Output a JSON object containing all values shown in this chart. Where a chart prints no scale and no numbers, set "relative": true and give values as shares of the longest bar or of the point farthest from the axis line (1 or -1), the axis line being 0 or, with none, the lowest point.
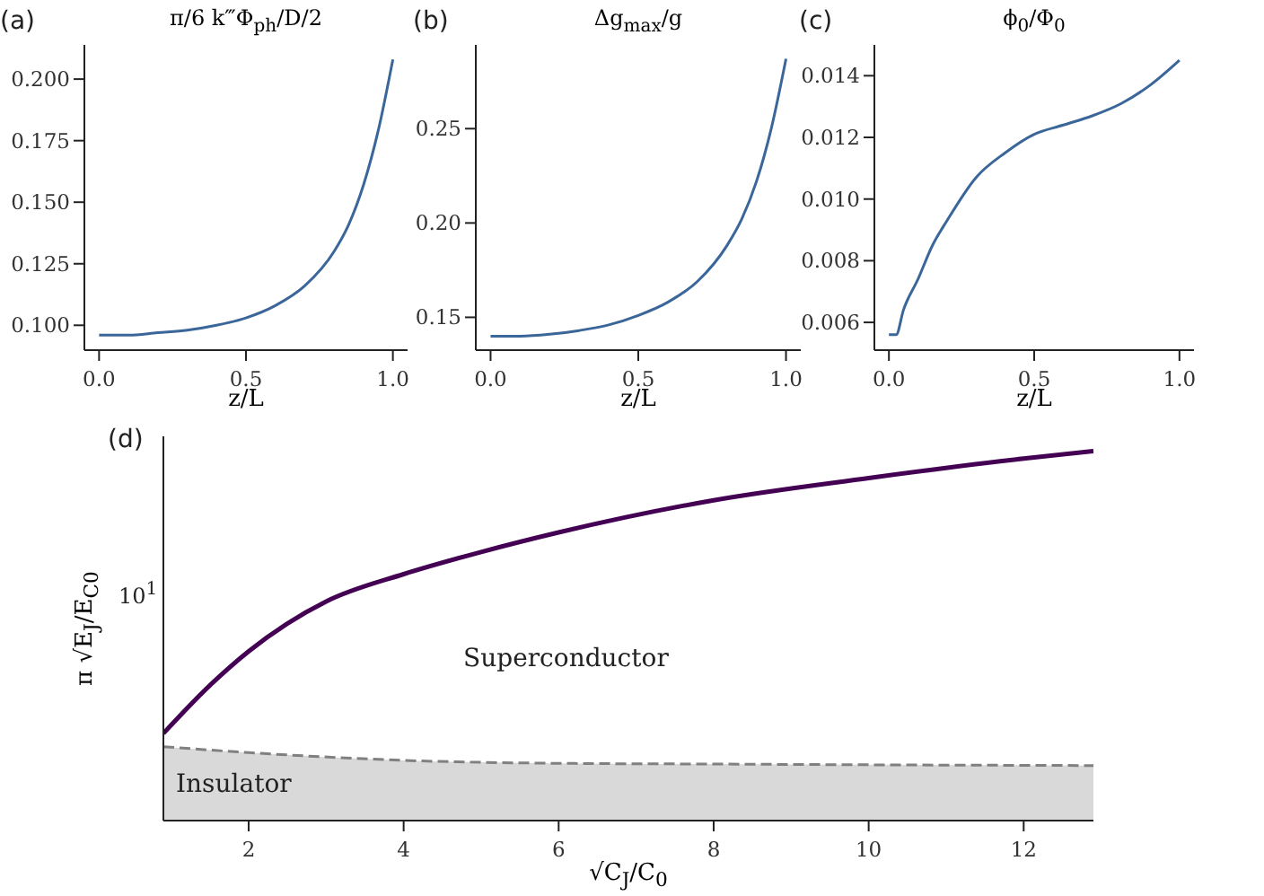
{
  "chart_data": [
    {
      "type": "line",
      "title": "π/6 k‴Φ$_{ph}$/D/2",
      "xlabel": "z/L",
      "annotations": [
        "(a)"
      ],
      "color": "#3a6699",
      "x": [
        0,
        0.1,
        0.2,
        0.3,
        0.4,
        0.5,
        0.6,
        0.7,
        0.8,
        0.85,
        0.9,
        0.95,
        1.0
      ],
      "values": [
        0.096,
        0.096,
        0.097,
        0.098,
        0.1,
        0.103,
        0.108,
        0.116,
        0.13,
        0.141,
        0.157,
        0.179,
        0.208
      ],
      "xlim": [
        -0.05,
        1.05
      ],
      "xticks": [
        {
          "value": 0,
          "label": "0.0"
        },
        {
          "value": 0.5,
          "label": "0.5"
        },
        {
          "value": 1,
          "label": "1.0"
        }
      ],
      "ylim": [
        0.0899,
        0.2139
      ],
      "yticks": [
        {
          "value": 0.1,
          "label": "0.100"
        },
        {
          "value": 0.125,
          "label": "0.125"
        },
        {
          "value": 0.15,
          "label": "0.150"
        },
        {
          "value": 0.175,
          "label": "0.175"
        },
        {
          "value": 0.2,
          "label": "0.200"
        }
      ]
    },
    {
      "type": "line",
      "title": "Δg$_{max}$/g",
      "xlabel": "z/L",
      "annotations": [
        "(b)"
      ],
      "color": "#3a6699",
      "x": [
        0,
        0.1,
        0.2,
        0.3,
        0.4,
        0.5,
        0.6,
        0.7,
        0.8,
        0.85,
        0.9,
        0.95,
        1.0
      ],
      "values": [
        0.14,
        0.14,
        0.141,
        0.143,
        0.146,
        0.151,
        0.158,
        0.169,
        0.188,
        0.202,
        0.222,
        0.25,
        0.287
      ],
      "xlim": [
        -0.05,
        1.05
      ],
      "xticks": [
        {
          "value": 0,
          "label": "0.0"
        },
        {
          "value": 0.5,
          "label": "0.5"
        },
        {
          "value": 1,
          "label": "1.0"
        }
      ],
      "ylim": [
        0.1326,
        0.2944
      ],
      "yticks": [
        {
          "value": 0.15,
          "label": "0.15"
        },
        {
          "value": 0.2,
          "label": "0.20"
        },
        {
          "value": 0.25,
          "label": "0.25"
        }
      ]
    },
    {
      "type": "line",
      "title": "ϕ$_{0}$/Φ$_{0}$",
      "xlabel": "z/L",
      "annotations": [
        "(c)"
      ],
      "color": "#3a6699",
      "x": [
        0,
        0.025,
        0.05,
        0.1,
        0.15,
        0.2,
        0.3,
        0.4,
        0.5,
        0.6,
        0.7,
        0.8,
        0.9,
        1.0
      ],
      "values": [
        0.0056,
        0.0056,
        0.0064,
        0.0074,
        0.0085,
        0.0093,
        0.0107,
        0.0115,
        0.0121,
        0.0124,
        0.0127,
        0.0131,
        0.0137,
        0.0145
      ],
      "xlim": [
        -0.05,
        1.05
      ],
      "xticks": [
        {
          "value": 0,
          "label": "0.0"
        },
        {
          "value": 0.5,
          "label": "0.5"
        },
        {
          "value": 1,
          "label": "1.0"
        }
      ],
      "ylim": [
        0.0051,
        0.015
      ],
      "yticks": [
        {
          "value": 0.006,
          "label": "0.006"
        },
        {
          "value": 0.008,
          "label": "0.008"
        },
        {
          "value": 0.01,
          "label": "0.010"
        },
        {
          "value": 0.012,
          "label": "0.012"
        },
        {
          "value": 0.014,
          "label": "0.014"
        }
      ]
    },
    {
      "type": "line",
      "xlabel": "√C$_{J}$/C$_{0}$",
      "ylabel": "π √E$_{J}$/E$_{C0}$",
      "relative": true,
      "annotations": [
        "(d)",
        "10$^{1}$",
        "Superconductor",
        "Insulator"
      ],
      "series": [
        {
          "type": "line",
          "color": "#440154",
          "x": [
            0.9,
            1.5,
            2,
            3,
            4,
            5,
            6,
            8,
            10,
            12,
            12.9
          ],
          "values": [
            0.236,
            0.366,
            0.458,
            0.593,
            0.667,
            0.727,
            0.78,
            0.867,
            0.927,
            0.98,
            1.0
          ]
        },
        {
          "type": "area",
          "color": "#808080",
          "line_style": "dashed",
          "x": [
            0.9,
            2,
            4,
            6,
            8,
            10,
            12.9
          ],
          "values": [
            0.2,
            0.184,
            0.163,
            0.155,
            0.153,
            0.151,
            0.149
          ]
        }
      ],
      "xlim": [
        0.9,
        12.9
      ],
      "xticks": [
        2,
        4,
        6,
        8,
        10,
        12
      ]
    }
  ]
}
